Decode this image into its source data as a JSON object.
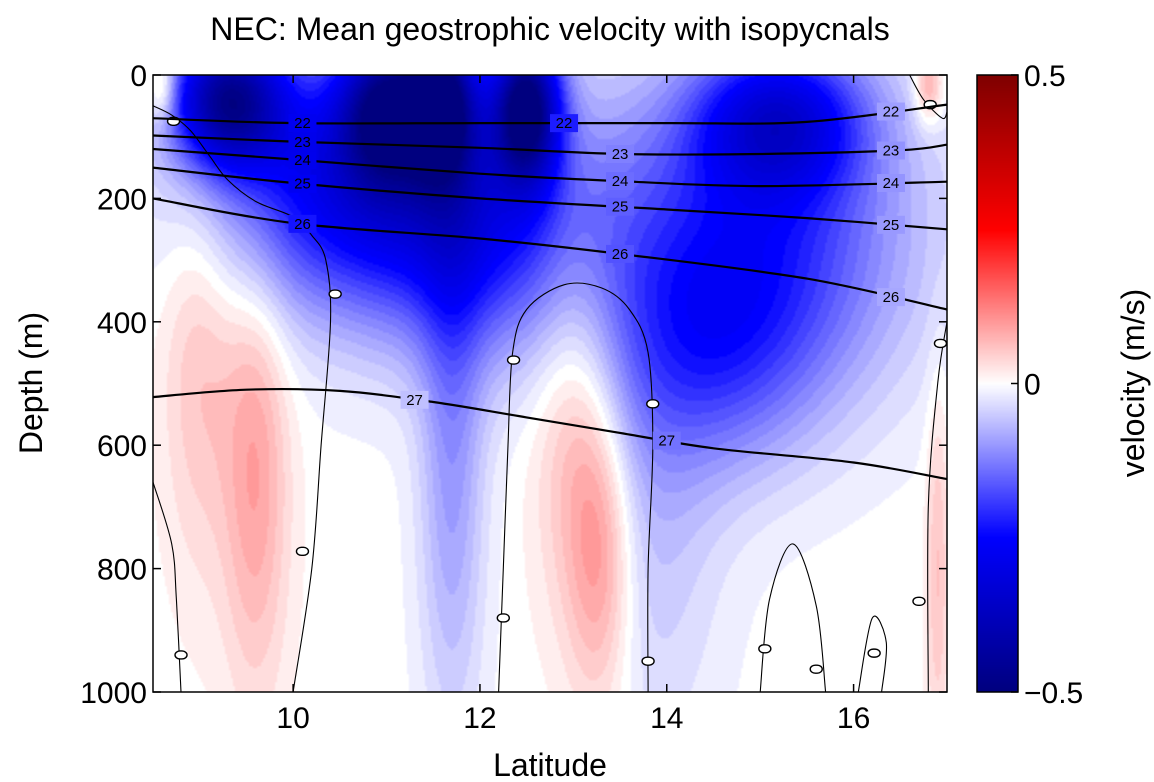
{
  "chart_data": {
    "type": "heatmap",
    "title": "NEC: Mean geostrophic velocity with isopycnals",
    "xlabel": "Latitude",
    "ylabel": "Depth (m)",
    "xlim": [
      8.5,
      17.0
    ],
    "ylim": [
      0,
      1000
    ],
    "y_reversed": true,
    "xticks": [
      10,
      12,
      14,
      16
    ],
    "xtick_labels": [
      "10",
      "12",
      "14",
      "16"
    ],
    "yticks": [
      0,
      200,
      400,
      600,
      800,
      1000
    ],
    "ytick_labels": [
      "0",
      "200",
      "400",
      "600",
      "800",
      "1000"
    ],
    "colorbar": {
      "label": "velocity (m/s)",
      "range": [
        -0.5,
        0.5
      ],
      "ticks": [
        0.5,
        0,
        -0.5
      ],
      "tick_labels": [
        "0.5",
        "0",
        "−0.5"
      ],
      "colors": {
        "max": "#7f0000",
        "mid_high": "#ff0000",
        "center": "#ffffff",
        "mid_low": "#0000ff",
        "min": "#00007f"
      }
    },
    "velocity_features": [
      {
        "lat": 9.3,
        "depth": 40,
        "value": -0.42,
        "lat_width": 0.6,
        "depth_width": 110
      },
      {
        "lat": 11.0,
        "depth": 50,
        "value": -0.35,
        "lat_width": 0.5,
        "depth_width": 120
      },
      {
        "lat": 11.6,
        "depth": 40,
        "value": -0.38,
        "lat_width": 0.35,
        "depth_width": 120
      },
      {
        "lat": 12.5,
        "depth": 50,
        "value": -0.45,
        "lat_width": 0.35,
        "depth_width": 120
      },
      {
        "lat": 10.5,
        "depth": 170,
        "value": -0.25,
        "lat_width": 1.4,
        "depth_width": 200
      },
      {
        "lat": 12.0,
        "depth": 230,
        "value": -0.22,
        "lat_width": 1.3,
        "depth_width": 220
      },
      {
        "lat": 15.2,
        "depth": 70,
        "value": -0.25,
        "lat_width": 0.9,
        "depth_width": 120
      },
      {
        "lat": 15.0,
        "depth": 260,
        "value": -0.2,
        "lat_width": 1.6,
        "depth_width": 260
      },
      {
        "lat": 14.5,
        "depth": 450,
        "value": -0.12,
        "lat_width": 1.1,
        "depth_width": 200
      },
      {
        "lat": 11.7,
        "depth": 600,
        "value": -0.1,
        "lat_width": 0.35,
        "depth_width": 450
      },
      {
        "lat": 13.8,
        "depth": 700,
        "value": -0.06,
        "lat_width": 0.8,
        "depth_width": 400
      },
      {
        "lat": 9.0,
        "depth": 450,
        "value": 0.06,
        "lat_width": 0.4,
        "depth_width": 350
      },
      {
        "lat": 9.6,
        "depth": 650,
        "value": 0.09,
        "lat_width": 0.35,
        "depth_width": 350
      },
      {
        "lat": 13.0,
        "depth": 550,
        "value": 0.08,
        "lat_width": 0.45,
        "depth_width": 350
      },
      {
        "lat": 13.3,
        "depth": 780,
        "value": 0.1,
        "lat_width": 0.35,
        "depth_width": 250
      },
      {
        "lat": 8.6,
        "depth": 20,
        "value": 0.12,
        "lat_width": 0.15,
        "depth_width": 60
      },
      {
        "lat": 16.8,
        "depth": 20,
        "value": 0.1,
        "lat_width": 0.15,
        "depth_width": 60
      },
      {
        "lat": 16.9,
        "depth": 800,
        "value": 0.06,
        "lat_width": 0.12,
        "depth_width": 300
      }
    ],
    "isopycnals": [
      {
        "label": "22",
        "points": [
          [
            8.5,
            70
          ],
          [
            10.0,
            78
          ],
          [
            12.0,
            78
          ],
          [
            14.0,
            78
          ],
          [
            15.5,
            76
          ],
          [
            17.0,
            48
          ]
        ],
        "label_at": [
          10.1,
          12.9,
          16.4
        ]
      },
      {
        "label": "23",
        "points": [
          [
            8.5,
            98
          ],
          [
            10.0,
            108
          ],
          [
            12.0,
            118
          ],
          [
            13.5,
            128
          ],
          [
            15.0,
            128
          ],
          [
            16.5,
            122
          ],
          [
            17.0,
            113
          ]
        ],
        "label_at": [
          10.1,
          13.5,
          16.4
        ]
      },
      {
        "label": "24",
        "points": [
          [
            8.5,
            120
          ],
          [
            10.0,
            137
          ],
          [
            12.0,
            160
          ],
          [
            13.5,
            172
          ],
          [
            15.0,
            180
          ],
          [
            17.0,
            173
          ]
        ],
        "label_at": [
          10.1,
          13.5,
          16.4
        ]
      },
      {
        "label": "25",
        "points": [
          [
            8.5,
            150
          ],
          [
            10.0,
            175
          ],
          [
            12.0,
            200
          ],
          [
            14.0,
            218
          ],
          [
            15.5,
            232
          ],
          [
            17.0,
            250
          ]
        ],
        "label_at": [
          10.1,
          13.5,
          16.4
        ]
      },
      {
        "label": "26",
        "points": [
          [
            8.5,
            200
          ],
          [
            10.0,
            240
          ],
          [
            12.0,
            265
          ],
          [
            13.5,
            290
          ],
          [
            15.5,
            330
          ],
          [
            17.0,
            380
          ]
        ],
        "label_at": [
          10.1,
          13.5,
          16.4
        ]
      },
      {
        "label": "27",
        "points": [
          [
            8.5,
            522
          ],
          [
            9.5,
            510
          ],
          [
            10.5,
            512
          ],
          [
            11.5,
            530
          ],
          [
            12.5,
            555
          ],
          [
            13.5,
            580
          ],
          [
            14.5,
            605
          ],
          [
            16.0,
            628
          ],
          [
            17.0,
            655
          ]
        ],
        "label_at": [
          11.3,
          14.0
        ]
      }
    ],
    "zero_contours": [
      {
        "points": [
          [
            8.5,
            50
          ],
          [
            8.7,
            65
          ],
          [
            8.9,
            90
          ],
          [
            9.1,
            130
          ],
          [
            9.3,
            170
          ],
          [
            9.6,
            205
          ],
          [
            10.0,
            230
          ],
          [
            10.2,
            260
          ],
          [
            10.35,
            300
          ],
          [
            10.4,
            400
          ],
          [
            10.3,
            600
          ],
          [
            10.2,
            800
          ],
          [
            10.0,
            1000
          ]
        ],
        "label_at": [
          [
            8.72,
            75
          ],
          [
            10.45,
            355
          ],
          [
            10.1,
            772
          ]
        ]
      },
      {
        "points": [
          [
            8.5,
            660
          ],
          [
            8.7,
            760
          ],
          [
            8.75,
            850
          ],
          [
            8.8,
            1000
          ]
        ],
        "label_at": [
          [
            8.8,
            940
          ]
        ]
      },
      {
        "points": [
          [
            12.2,
            1000
          ],
          [
            12.25,
            800
          ],
          [
            12.3,
            600
          ],
          [
            12.35,
            450
          ],
          [
            12.5,
            380
          ],
          [
            12.9,
            340
          ],
          [
            13.3,
            345
          ],
          [
            13.6,
            380
          ],
          [
            13.8,
            450
          ],
          [
            13.85,
            600
          ],
          [
            13.8,
            800
          ],
          [
            13.8,
            1000
          ]
        ],
        "label_at": [
          [
            12.36,
            462
          ],
          [
            12.25,
            880
          ],
          [
            13.85,
            533
          ],
          [
            13.8,
            950
          ]
        ]
      },
      {
        "points": [
          [
            15.0,
            1000
          ],
          [
            15.1,
            850
          ],
          [
            15.35,
            760
          ],
          [
            15.6,
            860
          ],
          [
            15.7,
            1000
          ]
        ],
        "label_at": [
          [
            15.05,
            930
          ],
          [
            15.6,
            963
          ]
        ]
      },
      {
        "points": [
          [
            16.05,
            1000
          ],
          [
            16.2,
            880
          ],
          [
            16.35,
            920
          ],
          [
            16.3,
            1000
          ]
        ],
        "label_at": [
          [
            16.22,
            937
          ]
        ]
      },
      {
        "points": [
          [
            16.8,
            1000
          ],
          [
            16.8,
            700
          ],
          [
            16.9,
            500
          ],
          [
            17.0,
            400
          ]
        ],
        "label_at": [
          [
            16.93,
            435
          ],
          [
            16.7,
            853
          ]
        ]
      },
      {
        "points": [
          [
            16.6,
            0
          ],
          [
            16.75,
            40
          ],
          [
            16.95,
            70
          ],
          [
            17.0,
            60
          ]
        ],
        "label_at": [
          [
            16.82,
            48
          ]
        ]
      }
    ]
  }
}
